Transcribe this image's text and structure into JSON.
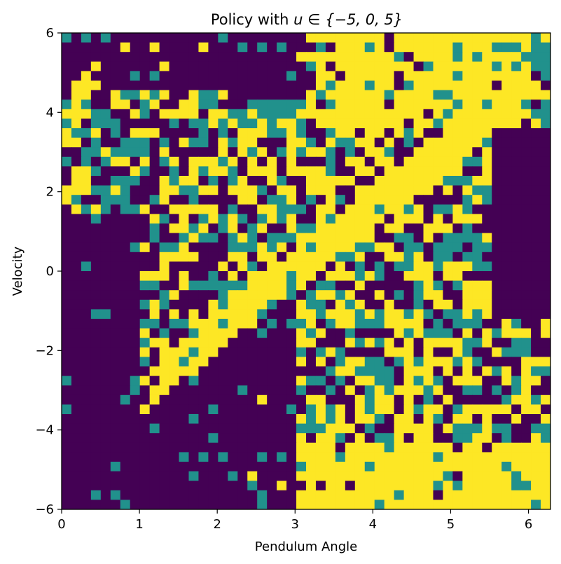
{
  "chart_data": {
    "type": "heatmap",
    "title_prefix": "Policy with ",
    "title_math": "u ∈ {−5, 0, 5}",
    "xlabel": "Pendulum Angle",
    "ylabel": "Velocity",
    "xlim": [
      0,
      6.283
    ],
    "ylim": [
      -6,
      6
    ],
    "xticks": [
      0,
      1,
      2,
      3,
      4,
      5,
      6
    ],
    "xtick_labels": [
      "0",
      "1",
      "2",
      "3",
      "4",
      "5",
      "6"
    ],
    "yticks": [
      -6,
      -4,
      -2,
      0,
      2,
      4,
      6
    ],
    "ytick_labels": [
      "−6",
      "−4",
      "−2",
      "0",
      "2",
      "4",
      "6"
    ],
    "grid": false,
    "colormap": "viridis",
    "color_levels": {
      "-5": "#440154",
      "0": "#21918c",
      "5": "#fde725"
    },
    "grid_shape": {
      "columns": 50,
      "rows": 50,
      "x_range": [
        0,
        6.283
      ],
      "y_range": [
        -6,
        6
      ]
    },
    "regions": [
      {
        "value": 5,
        "description": "diagonal band from lower-left (angle≈1.5, vel≈-2) to upper-right (angle≈6, vel≈5)"
      },
      {
        "value": 5,
        "description": "upper-right block angle 3.2–6, velocity 4–6"
      },
      {
        "value": 5,
        "description": "bottom block angle 3–6, velocity -6 to -4"
      },
      {
        "value": -5,
        "description": "left region angle 0–1, velocity -6 to 1.5"
      },
      {
        "value": -5,
        "description": "right region angle 5.5–6.28, velocity -1 to 3"
      },
      {
        "value": -5,
        "description": "top-left region angle 0–3, velocity 4.5–6"
      }
    ]
  }
}
